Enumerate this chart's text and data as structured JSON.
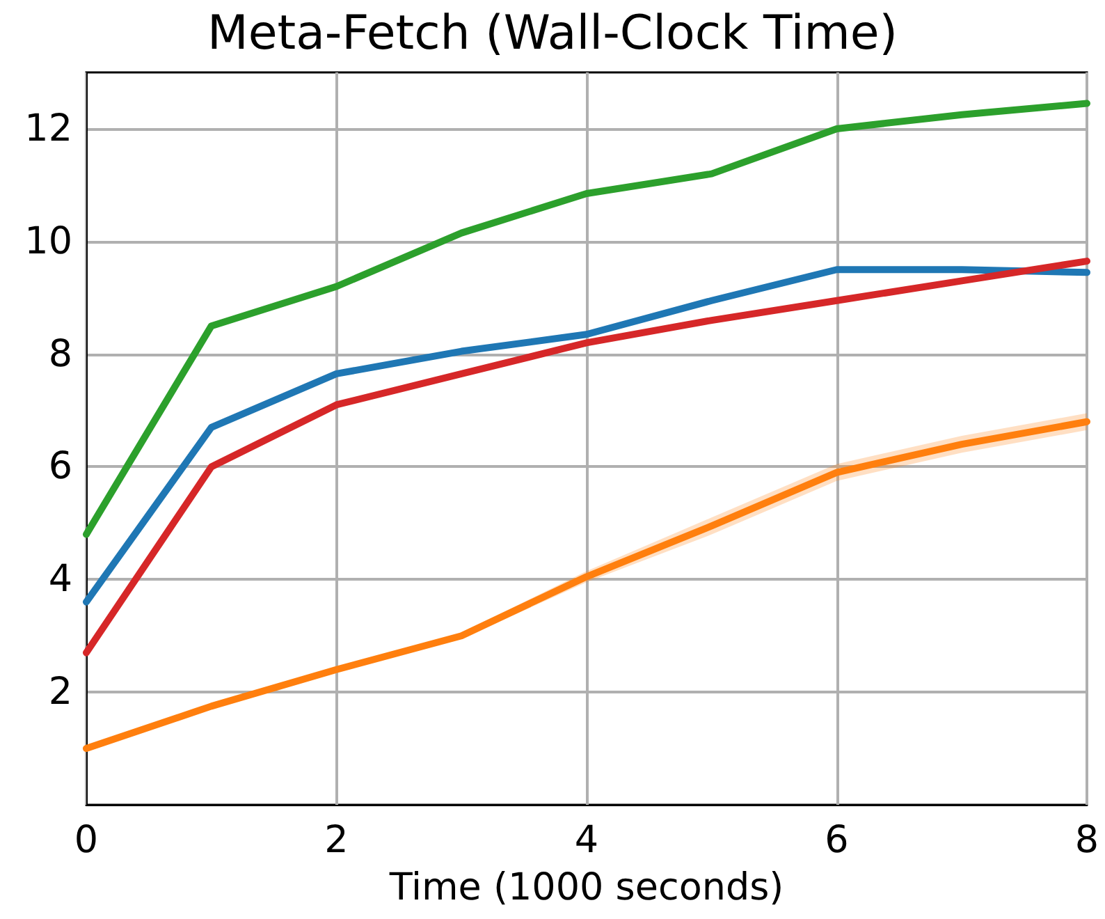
{
  "chart_data": {
    "type": "line",
    "title": "Meta-Fetch (Wall-Clock Time)",
    "xlabel": "Time (1000 seconds)",
    "x": [
      0,
      1,
      2,
      3,
      4,
      5,
      6,
      7,
      8
    ],
    "series": [
      {
        "color": "#2ca02c",
        "values": [
          4.8,
          8.5,
          9.2,
          10.15,
          10.85,
          11.2,
          12.0,
          12.25,
          12.45
        ]
      },
      {
        "color": "#1f77b4",
        "values": [
          3.6,
          6.7,
          7.65,
          8.05,
          8.35,
          8.95,
          9.5,
          9.5,
          9.45
        ]
      },
      {
        "color": "#d62728",
        "values": [
          2.7,
          6.0,
          7.1,
          7.65,
          8.2,
          8.6,
          8.95,
          9.3,
          9.65
        ]
      },
      {
        "color": "#ff7f0e",
        "values": [
          1.0,
          1.75,
          2.4,
          3.0,
          4.05,
          4.95,
          5.9,
          6.4,
          6.8
        ],
        "lower": [
          0.95,
          1.7,
          2.35,
          2.95,
          3.95,
          4.8,
          5.75,
          6.25,
          6.65
        ],
        "upper": [
          1.05,
          1.8,
          2.45,
          3.05,
          4.15,
          5.1,
          6.05,
          6.55,
          6.95
        ]
      }
    ],
    "xlim": [
      0,
      8
    ],
    "xticks": [
      0,
      2,
      4,
      6,
      8
    ],
    "ylim": [
      0,
      13
    ],
    "yticks": [
      2,
      4,
      6,
      8,
      10,
      12
    ],
    "grid": true,
    "marker": "none",
    "line_style": "solid"
  }
}
